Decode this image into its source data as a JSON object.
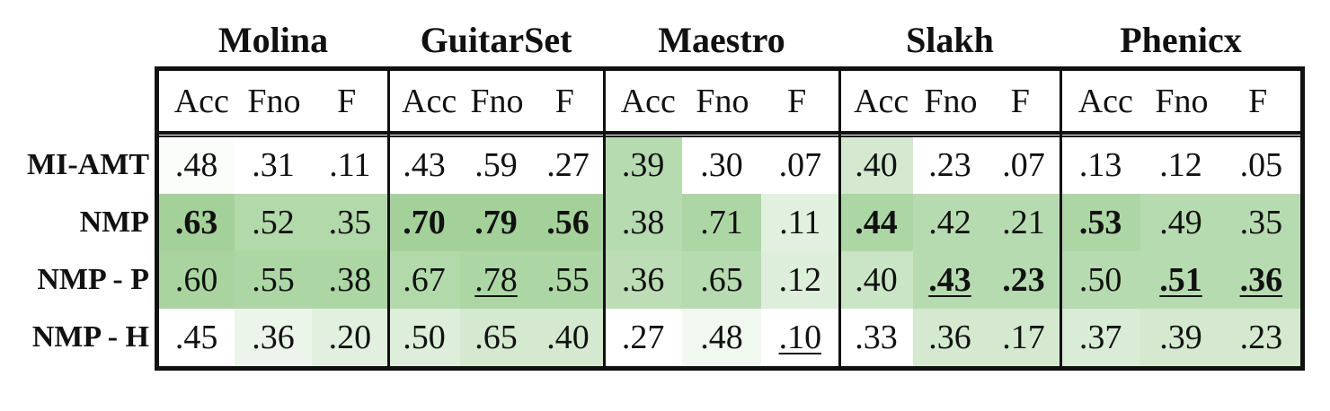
{
  "chart_data": {
    "type": "table",
    "datasets": [
      "Molina",
      "GuitarSet",
      "Maestro",
      "Slakh",
      "Phenicx"
    ],
    "metrics": [
      "Acc",
      "Fno",
      "F"
    ],
    "rows": [
      {
        "label": "MI-AMT",
        "values": [
          ".48",
          ".31",
          ".11",
          ".43",
          ".59",
          ".27",
          ".39",
          ".30",
          ".07",
          ".40",
          ".23",
          ".07",
          ".13",
          ".12",
          ".05"
        ],
        "shade": [
          0.05,
          0,
          0,
          0,
          0,
          0,
          0.75,
          0,
          0,
          0.45,
          0,
          0,
          0,
          0,
          0
        ],
        "bold": [
          false,
          false,
          false,
          false,
          false,
          false,
          false,
          false,
          false,
          false,
          false,
          false,
          false,
          false,
          false
        ],
        "underline": [
          false,
          false,
          false,
          false,
          false,
          false,
          false,
          false,
          false,
          false,
          false,
          false,
          false,
          false,
          false
        ]
      },
      {
        "label": "NMP",
        "values": [
          ".63",
          ".52",
          ".35",
          ".70",
          ".79",
          ".56",
          ".38",
          ".71",
          ".11",
          ".44",
          ".42",
          ".21",
          ".53",
          ".49",
          ".35"
        ],
        "shade": [
          0.95,
          0.8,
          0.8,
          0.95,
          0.95,
          0.95,
          0.75,
          0.85,
          0.3,
          0.85,
          0.75,
          0.75,
          0.85,
          0.75,
          0.75
        ],
        "bold": [
          true,
          false,
          false,
          true,
          true,
          true,
          false,
          false,
          false,
          true,
          false,
          false,
          true,
          false,
          false
        ],
        "underline": [
          false,
          false,
          false,
          false,
          false,
          false,
          false,
          false,
          false,
          false,
          false,
          false,
          false,
          false,
          false
        ]
      },
      {
        "label": "NMP - P",
        "values": [
          ".60",
          ".55",
          ".38",
          ".67",
          ".78",
          ".55",
          ".36",
          ".65",
          ".12",
          ".40",
          ".43",
          ".23",
          ".50",
          ".51",
          ".36"
        ],
        "shade": [
          0.9,
          0.85,
          0.85,
          0.8,
          0.85,
          0.85,
          0.7,
          0.75,
          0.35,
          0.55,
          0.75,
          0.75,
          0.75,
          0.75,
          0.75
        ],
        "bold": [
          false,
          false,
          false,
          false,
          false,
          false,
          false,
          false,
          false,
          false,
          true,
          true,
          false,
          true,
          true
        ],
        "underline": [
          false,
          false,
          false,
          false,
          true,
          false,
          false,
          false,
          false,
          false,
          true,
          false,
          false,
          true,
          true
        ]
      },
      {
        "label": "NMP - H",
        "values": [
          ".45",
          ".36",
          ".20",
          ".50",
          ".65",
          ".40",
          ".27",
          ".48",
          ".10",
          ".33",
          ".36",
          ".17",
          ".37",
          ".39",
          ".23"
        ],
        "shade": [
          0,
          0.2,
          0.3,
          0.35,
          0.45,
          0.45,
          0,
          0.15,
          0,
          0,
          0.45,
          0.45,
          0.4,
          0.45,
          0.45
        ],
        "bold": [
          false,
          false,
          false,
          false,
          false,
          false,
          false,
          false,
          false,
          false,
          false,
          false,
          false,
          false,
          false
        ],
        "underline": [
          false,
          false,
          false,
          false,
          false,
          false,
          false,
          false,
          true,
          false,
          false,
          false,
          false,
          false,
          false
        ]
      }
    ],
    "colors": {
      "shade_base": "#ffffff",
      "shade_max": "#9fcf95",
      "text": "#111111",
      "border": "#111111"
    }
  }
}
